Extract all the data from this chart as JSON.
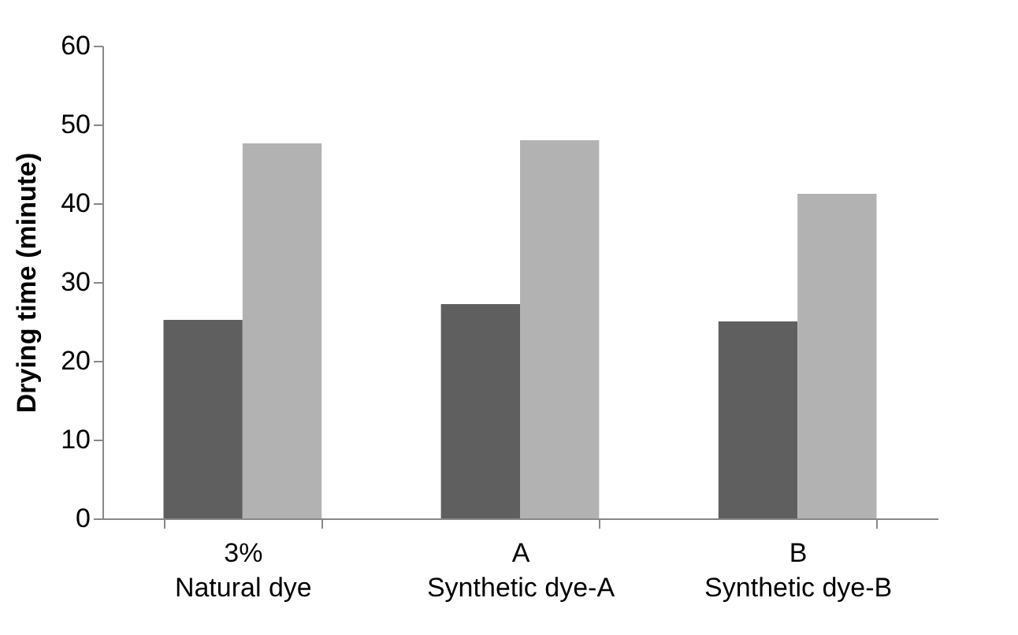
{
  "chart_data": {
    "type": "bar",
    "ylabel": "Drying time (minute)",
    "categories": [
      "3%\nNatural dye",
      "A\nSynthetic dye-A",
      "B\nSynthetic dye-B"
    ],
    "series": [
      {
        "color": "#5f5f5f",
        "values": [
          25.2,
          27.2,
          25
        ]
      },
      {
        "color": "#b2b2b2",
        "values": [
          47.6,
          48,
          41.2
        ]
      }
    ],
    "ylim": [
      0,
      60
    ],
    "yticks": [
      0,
      10,
      20,
      30,
      40,
      50,
      60
    ],
    "grid": false,
    "legend": false
  }
}
